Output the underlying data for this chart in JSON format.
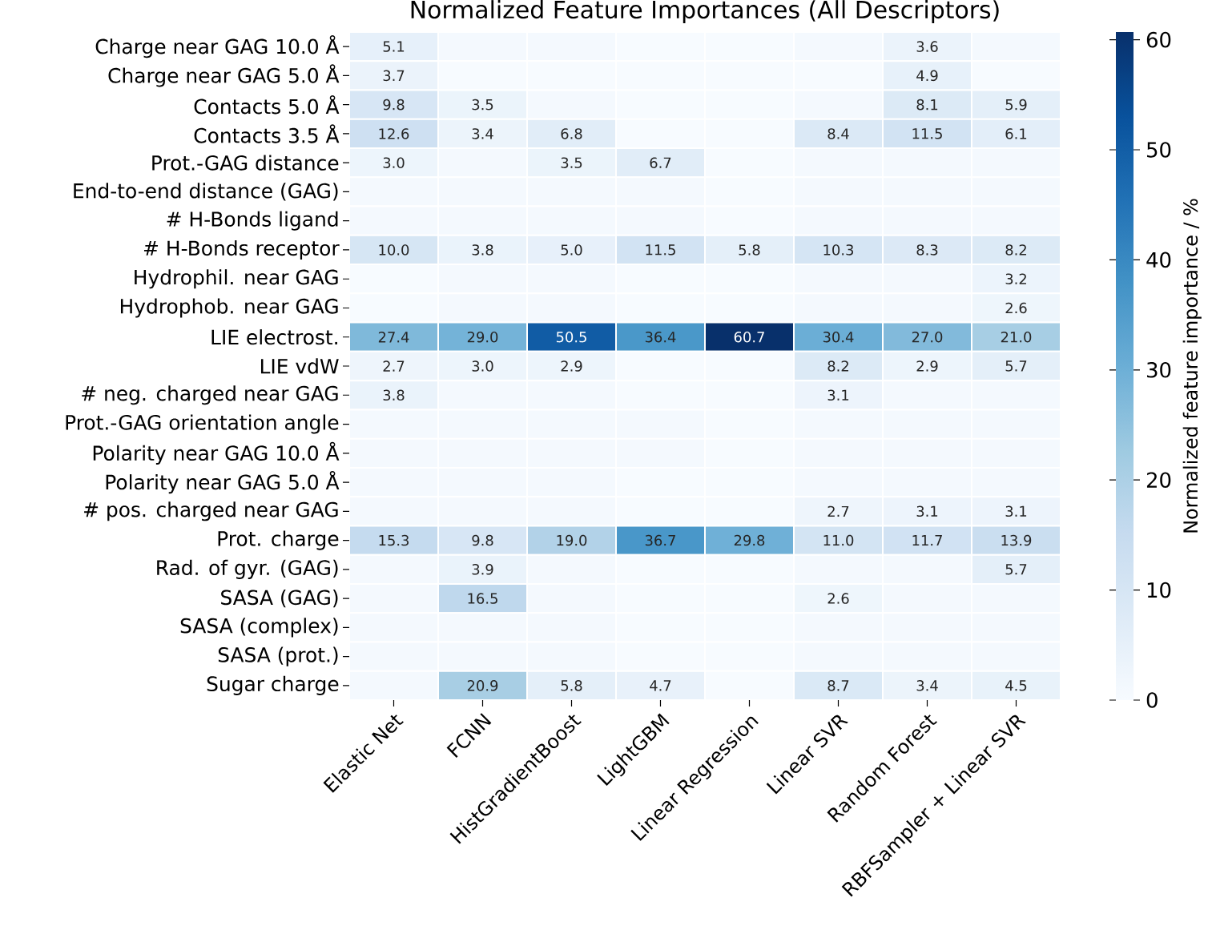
{
  "chart_data": {
    "type": "heatmap",
    "title": "Normalized Feature Importances (All Descriptors)",
    "categories": [
      "Elastic Net",
      "FCNN",
      "HistGradientBoost",
      "LightGBM",
      "Linear Regression",
      "Linear SVR",
      "Random Forest",
      "RBFSampler + Linear SVR"
    ],
    "y_categories": [
      "Charge near GAG 10.0 Å",
      "Charge near GAG  5.0 Å",
      "Contacts 5.0 Å",
      "Contacts 3.5 Å",
      "Prot.-GAG distance",
      "End-to-end distance (GAG)",
      "# H-Bonds ligand",
      "# H-Bonds receptor",
      "Hydrophil. near GAG",
      "Hydrophob. near GAG",
      "LIE electrost.",
      "LIE vdW",
      "# neg. charged near GAG",
      "Prot.-GAG orientation angle",
      "Polarity near GAG 10.0 Å",
      "Polarity near GAG 5.0 Å",
      "# pos. charged near GAG",
      "Prot. charge",
      "Rad. of gyr. (GAG)",
      "SASA (GAG)",
      "SASA (complex)",
      "SASA (prot.)",
      "Sugar charge"
    ],
    "cells": [
      [
        5.1,
        1,
        1,
        0,
        0,
        1,
        3.6,
        1
      ],
      [
        3.7,
        0,
        0,
        0,
        0,
        0,
        4.9,
        0
      ],
      [
        9.8,
        3.5,
        1,
        0,
        0,
        1,
        8.1,
        5.9
      ],
      [
        12.6,
        3.4,
        6.8,
        0,
        0,
        8.4,
        11.5,
        6.1
      ],
      [
        3.0,
        1,
        3.5,
        6.7,
        0,
        1,
        1,
        1
      ],
      [
        1,
        1,
        1,
        1,
        0,
        1,
        1,
        1
      ],
      [
        1,
        1,
        1,
        1,
        0,
        1,
        1,
        1
      ],
      [
        10.0,
        3.8,
        5.0,
        11.5,
        5.8,
        10.3,
        8.3,
        8.2
      ],
      [
        0,
        1,
        1,
        0,
        0,
        1,
        1,
        3.2
      ],
      [
        0,
        1,
        1,
        0,
        0,
        1,
        1,
        2.6
      ],
      [
        27.4,
        29.0,
        50.5,
        36.4,
        60.7,
        30.4,
        27.0,
        21.0
      ],
      [
        2.7,
        3.0,
        2.9,
        0,
        0,
        8.2,
        2.9,
        5.7
      ],
      [
        3.8,
        1,
        1,
        0,
        0,
        3.1,
        1,
        1
      ],
      [
        1,
        1,
        1,
        1,
        0,
        1,
        1,
        1
      ],
      [
        1,
        1,
        1,
        1,
        0,
        1,
        1,
        1
      ],
      [
        1,
        1,
        1,
        0,
        0,
        1,
        1,
        1
      ],
      [
        1,
        1,
        1,
        0,
        0,
        2.7,
        3.1,
        3.1
      ],
      [
        15.3,
        9.8,
        19.0,
        36.7,
        29.8,
        11.0,
        11.7,
        13.9
      ],
      [
        1,
        3.9,
        1,
        0,
        0,
        1,
        1,
        5.7
      ],
      [
        1,
        16.5,
        1,
        0,
        0,
        2.6,
        1,
        1
      ],
      [
        1,
        1,
        1,
        0,
        0,
        1,
        1,
        1
      ],
      [
        1,
        1,
        1,
        0,
        0,
        1,
        1,
        1
      ],
      [
        1,
        20.9,
        5.8,
        4.7,
        0,
        8.7,
        3.4,
        4.5
      ]
    ],
    "cell_labels": [
      [
        "5.1",
        null,
        null,
        null,
        null,
        null,
        "3.6",
        null
      ],
      [
        "3.7",
        null,
        null,
        null,
        null,
        null,
        "4.9",
        null
      ],
      [
        "9.8",
        "3.5",
        null,
        null,
        null,
        null,
        "8.1",
        "5.9"
      ],
      [
        "12.6",
        "3.4",
        "6.8",
        null,
        null,
        "8.4",
        "11.5",
        "6.1"
      ],
      [
        "3.0",
        null,
        "3.5",
        "6.7",
        null,
        null,
        null,
        null
      ],
      [
        null,
        null,
        null,
        null,
        null,
        null,
        null,
        null
      ],
      [
        null,
        null,
        null,
        null,
        null,
        null,
        null,
        null
      ],
      [
        "10.0",
        "3.8",
        "5.0",
        "11.5",
        "5.8",
        "10.3",
        "8.3",
        "8.2"
      ],
      [
        null,
        null,
        null,
        null,
        null,
        null,
        null,
        "3.2"
      ],
      [
        null,
        null,
        null,
        null,
        null,
        null,
        null,
        "2.6"
      ],
      [
        "27.4",
        "29.0",
        "50.5",
        "36.4",
        "60.7",
        "30.4",
        "27.0",
        "21.0"
      ],
      [
        "2.7",
        "3.0",
        "2.9",
        null,
        null,
        "8.2",
        "2.9",
        "5.7"
      ],
      [
        "3.8",
        null,
        null,
        null,
        null,
        "3.1",
        null,
        null
      ],
      [
        null,
        null,
        null,
        null,
        null,
        null,
        null,
        null
      ],
      [
        null,
        null,
        null,
        null,
        null,
        null,
        null,
        null
      ],
      [
        null,
        null,
        null,
        null,
        null,
        null,
        null,
        null
      ],
      [
        null,
        null,
        null,
        null,
        null,
        "2.7",
        "3.1",
        "3.1"
      ],
      [
        "15.3",
        "9.8",
        "19.0",
        "36.7",
        "29.8",
        "11.0",
        "11.7",
        "13.9"
      ],
      [
        null,
        "3.9",
        null,
        null,
        null,
        null,
        null,
        "5.7"
      ],
      [
        null,
        "16.5",
        null,
        null,
        null,
        "2.6",
        null,
        null
      ],
      [
        null,
        null,
        null,
        null,
        null,
        null,
        null,
        null
      ],
      [
        null,
        null,
        null,
        null,
        null,
        null,
        null,
        null
      ],
      [
        null,
        "20.9",
        "5.8",
        "4.7",
        null,
        "8.7",
        "3.4",
        "4.5"
      ]
    ],
    "clim": [
      0,
      60.7
    ],
    "cticks": [
      0,
      10,
      20,
      30,
      40,
      50,
      60
    ],
    "clabel": "Normalized feature importance / %"
  }
}
